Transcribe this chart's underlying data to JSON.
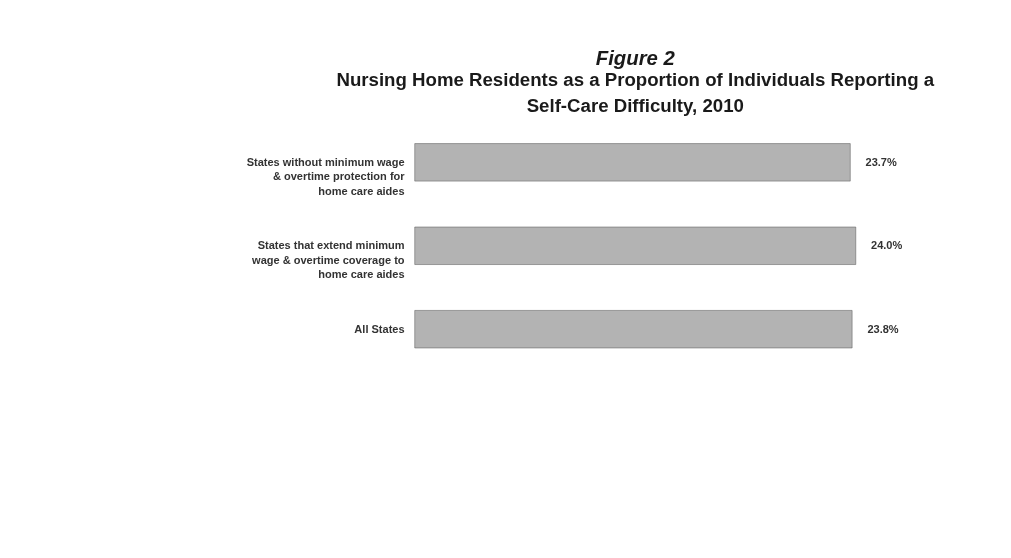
{
  "chart_data": {
    "type": "bar",
    "orientation": "horizontal",
    "title": "Figure 2",
    "subtitle": "Nursing Home Residents as a Proportion of Individuals Reporting a Self-Care Difficulty, 2010",
    "categories": [
      "States without minimum wage & overtime protection for home care aides",
      "States that extend minimum wage & overtime coverage to home care aides",
      "All States"
    ],
    "values": [
      23.7,
      24.0,
      23.8
    ],
    "value_labels": [
      "23.7%",
      "24.0%",
      "23.8%"
    ],
    "color": "#b3b3b3"
  }
}
